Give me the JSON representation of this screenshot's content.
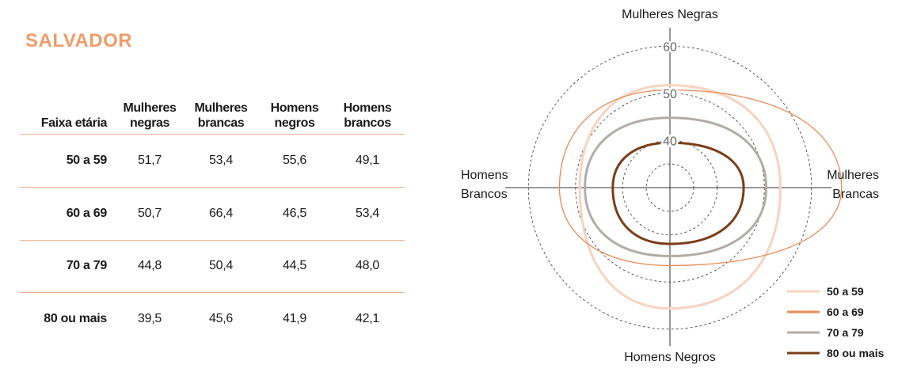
{
  "title": "SALVADOR",
  "table": {
    "headers": [
      "Faixa etária",
      "Mulheres negras",
      "Mulheres brancas",
      "Homens negros",
      "Homens brancos"
    ],
    "rows": [
      {
        "label": "50 a 59",
        "values": [
          "51,7",
          "53,4",
          "55,6",
          "49,1"
        ]
      },
      {
        "label": "60 a 69",
        "values": [
          "50,7",
          "66,4",
          "46,5",
          "53,4"
        ]
      },
      {
        "label": "70 a 79",
        "values": [
          "44,8",
          "50,4",
          "44,5",
          "48,0"
        ]
      },
      {
        "label": "80 ou mais",
        "values": [
          "39,5",
          "45,6",
          "41,9",
          "42,1"
        ]
      }
    ]
  },
  "chart_data": {
    "type": "radar",
    "axes": [
      "Mulheres Negras",
      "Mulheres Brancas",
      "Homens Negros",
      "Homens Brancos"
    ],
    "rings": [
      40,
      50,
      60
    ],
    "series": [
      {
        "name": "50 a 59",
        "values": [
          51.7,
          53.4,
          55.6,
          49.1
        ],
        "color": "#f8d3c0"
      },
      {
        "name": "60 a 69",
        "values": [
          50.7,
          66.4,
          46.5,
          53.4
        ],
        "color": "#e88a55"
      },
      {
        "name": "70 a 79",
        "values": [
          44.8,
          50.4,
          44.5,
          48.0
        ],
        "color": "#b3aca6"
      },
      {
        "name": "80 ou mais",
        "values": [
          39.5,
          45.6,
          41.9,
          42.1
        ],
        "color": "#7a3d17"
      }
    ],
    "legend_position": "bottom-right"
  }
}
